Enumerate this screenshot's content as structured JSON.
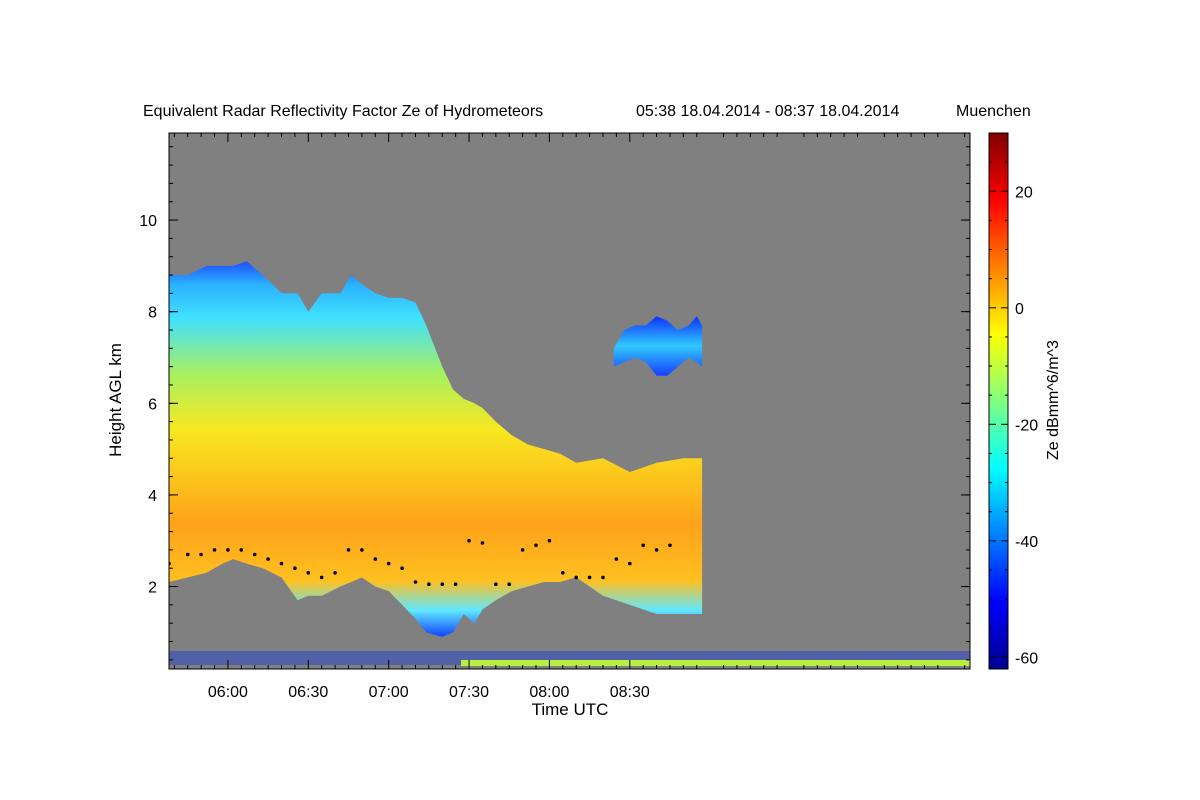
{
  "chart_data": {
    "type": "heatmap",
    "title": "Equivalent Radar Reflectivity Factor Ze of Hydrometeors",
    "time_range_label": "05:38 18.04.2014 - 08:37 18.04.2014",
    "location": "Muenchen",
    "xlabel": "Time UTC",
    "ylabel": "Height AGL km",
    "colorbar_label": "Ze dBmm^6/m^3",
    "x_range_min": [
      338,
      637
    ],
    "y_range_km": [
      0.2,
      11.9
    ],
    "colorbar_range": [
      -62,
      30
    ],
    "x_ticks": [
      {
        "label": "06:00",
        "min": 360
      },
      {
        "label": "06:30",
        "min": 390
      },
      {
        "label": "07:00",
        "min": 420
      },
      {
        "label": "07:30",
        "min": 450
      },
      {
        "label": "08:00",
        "min": 480
      },
      {
        "label": "08:30",
        "min": 510
      }
    ],
    "y_ticks": [
      {
        "label": "2",
        "km": 2
      },
      {
        "label": "4",
        "km": 4
      },
      {
        "label": "6",
        "km": 6
      },
      {
        "label": "8",
        "km": 8
      },
      {
        "label": "10",
        "km": 10
      }
    ],
    "colorbar_ticks": [
      {
        "label": "20",
        "v": 20
      },
      {
        "label": "0",
        "v": 0
      },
      {
        "label": "-20",
        "v": -20
      },
      {
        "label": "-40",
        "v": -40
      },
      {
        "label": "-60",
        "v": -60
      }
    ],
    "no_signal_color": "#808080",
    "colormap": [
      "#00008f",
      "#0000ff",
      "#0080ff",
      "#00ffff",
      "#80ff80",
      "#ffff00",
      "#ff8000",
      "#ff0000",
      "#800000"
    ],
    "echo_layers": [
      {
        "name": "main precipitation echo",
        "time_min": [
          338,
          345,
          352,
          358,
          362,
          367,
          373,
          380,
          386,
          390,
          395,
          402,
          406,
          410,
          415,
          420,
          425,
          430,
          434,
          440,
          444,
          448,
          452,
          455,
          460,
          466,
          472,
          478,
          484,
          490,
          500,
          510,
          520,
          530,
          537
        ],
        "top_km": [
          8.8,
          8.8,
          9.0,
          9.0,
          9.0,
          9.1,
          8.8,
          8.4,
          8.4,
          8.0,
          8.4,
          8.4,
          8.8,
          8.6,
          8.4,
          8.3,
          8.3,
          8.2,
          7.7,
          6.8,
          6.3,
          6.1,
          6.0,
          5.9,
          5.6,
          5.3,
          5.1,
          5.0,
          4.9,
          4.7,
          4.8,
          4.5,
          4.7,
          4.8,
          4.8
        ],
        "base_km": [
          2.1,
          2.2,
          2.3,
          2.5,
          2.6,
          2.5,
          2.4,
          2.2,
          1.7,
          1.8,
          1.8,
          2.0,
          2.1,
          2.2,
          2.0,
          1.9,
          1.6,
          1.3,
          1.0,
          0.9,
          1.0,
          1.4,
          1.2,
          1.5,
          1.7,
          1.9,
          2.0,
          2.1,
          2.1,
          2.2,
          1.8,
          1.6,
          1.4,
          1.4,
          1.4
        ]
      },
      {
        "name": "upper cloud",
        "time_min": [
          504,
          508,
          512,
          516,
          520,
          524,
          528,
          532,
          535,
          537
        ],
        "top_km": [
          7.2,
          7.6,
          7.7,
          7.7,
          7.9,
          7.8,
          7.6,
          7.7,
          7.9,
          7.7
        ],
        "base_km": [
          6.8,
          6.9,
          7.0,
          6.9,
          6.6,
          6.6,
          6.8,
          7.0,
          6.9,
          6.8
        ]
      }
    ],
    "melting_layer": {
      "time_min": [
        338,
        345,
        350,
        355,
        360,
        365,
        370,
        375,
        380,
        385,
        390,
        395,
        400,
        405,
        410,
        415,
        420,
        425,
        430,
        435,
        440,
        445,
        450,
        455,
        460,
        465,
        470,
        475,
        480,
        485,
        490,
        495,
        500,
        505,
        510,
        515,
        520,
        525
      ],
      "height_km": [
        2.5,
        2.7,
        2.7,
        2.8,
        2.8,
        2.8,
        2.7,
        2.6,
        2.5,
        2.4,
        2.3,
        2.2,
        2.3,
        2.8,
        2.8,
        2.6,
        2.5,
        2.4,
        2.1,
        2.05,
        2.05,
        2.05,
        3.0,
        2.95,
        2.05,
        2.05,
        2.8,
        2.9,
        3.0,
        2.3,
        2.2,
        2.2,
        2.2,
        2.6,
        2.5,
        2.9,
        2.8,
        2.9
      ]
    }
  }
}
